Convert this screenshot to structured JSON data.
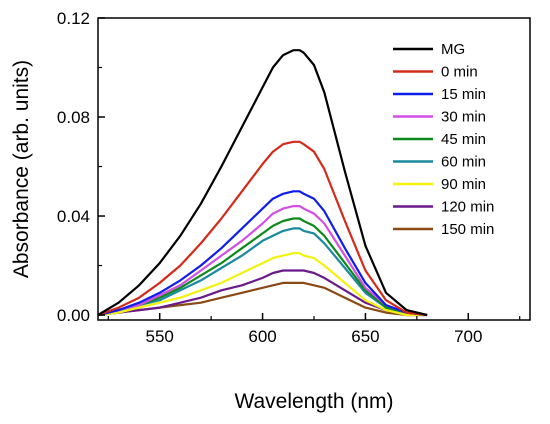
{
  "chart_data": {
    "type": "line",
    "xlabel": "Wavelength (nm)",
    "ylabel": "Absorbance (arb. units)",
    "xlim": [
      520,
      730
    ],
    "ylim": [
      -0.002,
      0.12
    ],
    "xticks": [
      550,
      600,
      650,
      700
    ],
    "xtick_labels": [
      "550",
      "600",
      "650",
      "700"
    ],
    "yticks": [
      0.0,
      0.04,
      0.08,
      0.12
    ],
    "ytick_labels": [
      "0.00",
      "0.04",
      "0.08",
      "0.12"
    ],
    "grid": false,
    "legend_position": "top-right",
    "x": [
      520,
      530,
      540,
      550,
      560,
      570,
      580,
      590,
      600,
      605,
      610,
      615,
      618,
      620,
      625,
      630,
      640,
      650,
      660,
      670,
      680
    ],
    "series": [
      {
        "name": "MG",
        "color": "#000000",
        "values": [
          0.0,
          0.005,
          0.012,
          0.021,
          0.032,
          0.045,
          0.06,
          0.076,
          0.092,
          0.1,
          0.105,
          0.107,
          0.107,
          0.106,
          0.101,
          0.09,
          0.058,
          0.028,
          0.009,
          0.002,
          0.0
        ]
      },
      {
        "name": "0 min",
        "color": "#d42a1a",
        "values": [
          0.0,
          0.003,
          0.007,
          0.013,
          0.02,
          0.029,
          0.039,
          0.05,
          0.061,
          0.066,
          0.069,
          0.07,
          0.07,
          0.069,
          0.066,
          0.059,
          0.038,
          0.018,
          0.006,
          0.001,
          0.0
        ]
      },
      {
        "name": "15 min",
        "color": "#0f1ee8",
        "values": [
          0.0,
          0.002,
          0.005,
          0.009,
          0.014,
          0.02,
          0.027,
          0.035,
          0.043,
          0.047,
          0.049,
          0.05,
          0.05,
          0.049,
          0.047,
          0.042,
          0.027,
          0.013,
          0.004,
          0.001,
          0.0
        ]
      },
      {
        "name": "30 min",
        "color": "#d24ee4",
        "values": [
          0.0,
          0.002,
          0.004,
          0.008,
          0.012,
          0.018,
          0.024,
          0.03,
          0.037,
          0.041,
          0.043,
          0.044,
          0.044,
          0.043,
          0.041,
          0.037,
          0.024,
          0.011,
          0.004,
          0.001,
          0.0
        ]
      },
      {
        "name": "45 min",
        "color": "#0e8a1c",
        "values": [
          0.0,
          0.002,
          0.004,
          0.007,
          0.011,
          0.016,
          0.021,
          0.027,
          0.033,
          0.036,
          0.038,
          0.039,
          0.039,
          0.038,
          0.036,
          0.032,
          0.021,
          0.01,
          0.003,
          0.001,
          0.0
        ]
      },
      {
        "name": "60 min",
        "color": "#1a8a9e",
        "values": [
          0.0,
          0.002,
          0.004,
          0.006,
          0.01,
          0.014,
          0.019,
          0.024,
          0.03,
          0.032,
          0.034,
          0.035,
          0.035,
          0.034,
          0.033,
          0.029,
          0.019,
          0.009,
          0.003,
          0.001,
          0.0
        ]
      },
      {
        "name": "90 min",
        "color": "#f2f20e",
        "values": [
          0.0,
          0.001,
          0.003,
          0.005,
          0.007,
          0.01,
          0.013,
          0.017,
          0.021,
          0.023,
          0.024,
          0.025,
          0.025,
          0.024,
          0.023,
          0.02,
          0.013,
          0.006,
          0.002,
          0.0,
          0.0
        ]
      },
      {
        "name": "120 min",
        "color": "#6a1a8a",
        "values": [
          0.0,
          0.001,
          0.002,
          0.003,
          0.005,
          0.007,
          0.01,
          0.012,
          0.015,
          0.017,
          0.018,
          0.018,
          0.018,
          0.018,
          0.017,
          0.015,
          0.01,
          0.005,
          0.002,
          0.0,
          0.0
        ]
      },
      {
        "name": "150 min",
        "color": "#8a4a14",
        "values": [
          0.0,
          0.001,
          0.002,
          0.003,
          0.004,
          0.005,
          0.007,
          0.009,
          0.011,
          0.012,
          0.013,
          0.013,
          0.013,
          0.013,
          0.012,
          0.011,
          0.007,
          0.003,
          0.001,
          0.0,
          0.0
        ]
      }
    ]
  }
}
